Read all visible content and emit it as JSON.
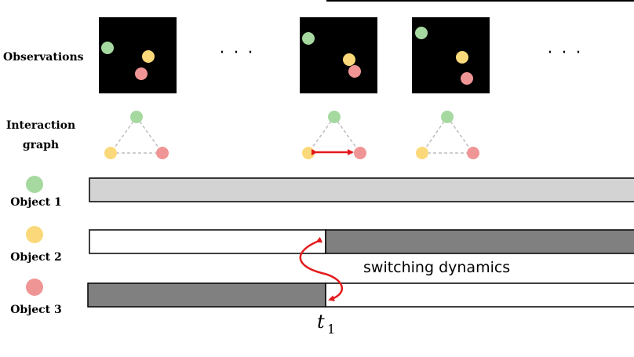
{
  "rows": {
    "observations": "Observations",
    "interaction_line1": "Interaction",
    "interaction_line2": "graph",
    "object1": "Object 1",
    "object2": "Object 2",
    "object3": "Object 3"
  },
  "ellipsis": "· · ·",
  "annotation": "switching dynamics",
  "time_label": "t",
  "time_sub": "1",
  "colors": {
    "green": "#a6d9a0",
    "yellow": "#fbd97a",
    "red": "#f09595",
    "light_bar": "#d3d3d3",
    "dark_bar": "#808080",
    "arrow": "#e31a1c",
    "edge": "#bdbdbd"
  }
}
